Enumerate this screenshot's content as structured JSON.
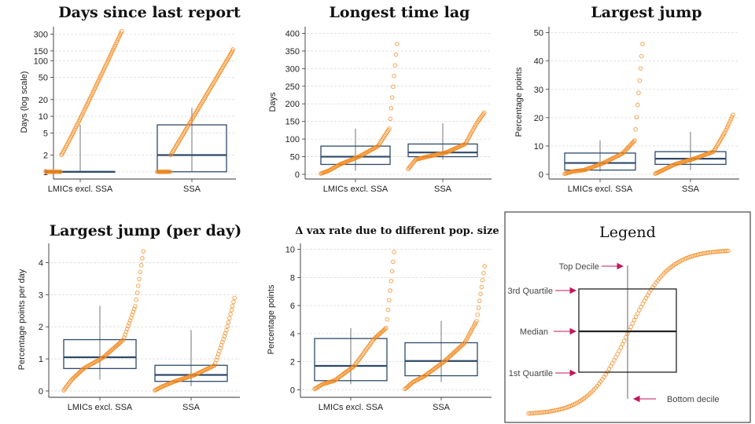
{
  "colors": {
    "box": "#2e4a6b",
    "point": "#f28a1f",
    "whisker": "#a9a9a9",
    "grid": "#dcdcdc",
    "arrow": "#c2185b"
  },
  "chart_data": [
    {
      "id": "days",
      "type": "box_strip",
      "title": "Days since last report",
      "ylabel": "Days (log scale)",
      "scale": "log",
      "ylim": [
        0.9,
        360
      ],
      "yticks": [
        1,
        2,
        5,
        10,
        20,
        50,
        100,
        150,
        300
      ],
      "categories": [
        "LMICs excl. SSA",
        "SSA"
      ],
      "boxes": [
        {
          "low": 1,
          "q1": 1,
          "median": 1,
          "q3": 1,
          "high": 7
        },
        {
          "low": 1,
          "q1": 1,
          "median": 2,
          "q3": 7,
          "high": 14
        }
      ],
      "points": [
        {
          "min": 1,
          "max": 340,
          "pattern": "days1"
        },
        {
          "min": 1,
          "max": 160,
          "pattern": "days2"
        }
      ]
    },
    {
      "id": "lag",
      "type": "box_strip",
      "title": "Longest time lag",
      "ylabel": "Days",
      "scale": "linear",
      "ylim": [
        0,
        410
      ],
      "yticks": [
        0,
        50,
        100,
        150,
        200,
        250,
        300,
        350,
        400
      ],
      "categories": [
        "LMICs excl. SSA",
        "SSA"
      ],
      "boxes": [
        {
          "low": 10,
          "q1": 28,
          "median": 50,
          "q3": 80,
          "high": 130
        },
        {
          "low": 42,
          "q1": 50,
          "median": 62,
          "q3": 86,
          "high": 145
        }
      ],
      "points": [
        {
          "min": 2,
          "max": 370,
          "pattern": "skew"
        },
        {
          "min": 15,
          "max": 175,
          "pattern": "skewmild"
        }
      ]
    },
    {
      "id": "jump",
      "type": "box_strip",
      "title": "Largest jump",
      "ylabel": "Percentage points",
      "scale": "linear",
      "ylim": [
        0,
        51
      ],
      "yticks": [
        0,
        10,
        20,
        30,
        40,
        50
      ],
      "categories": [
        "LMICs excl. SSA",
        "SSA"
      ],
      "boxes": [
        {
          "low": 1,
          "q1": 1.5,
          "median": 4,
          "q3": 7.5,
          "high": 12
        },
        {
          "low": 1.5,
          "q1": 3.5,
          "median": 5.5,
          "q3": 8,
          "high": 15
        }
      ],
      "points": [
        {
          "min": 0.2,
          "max": 46,
          "pattern": "skew"
        },
        {
          "min": 0.2,
          "max": 21,
          "pattern": "skewmild"
        }
      ]
    },
    {
      "id": "jumpday",
      "type": "box_strip",
      "title": "Largest jump (per day)",
      "ylabel": "Percentage points per day",
      "scale": "linear",
      "ylim": [
        -0.05,
        4.5
      ],
      "yticks": [
        0,
        1,
        2,
        3,
        4
      ],
      "categories": [
        "LMICs excl. SSA",
        "SSA"
      ],
      "boxes": [
        {
          "low": 0.35,
          "q1": 0.7,
          "median": 1.05,
          "q3": 1.6,
          "high": 2.65
        },
        {
          "low": 0.15,
          "q1": 0.3,
          "median": 0.5,
          "q3": 0.8,
          "high": 1.9
        }
      ],
      "points": [
        {
          "min": 0.02,
          "max": 4.35,
          "pattern": "skew"
        },
        {
          "min": 0.02,
          "max": 2.9,
          "pattern": "skew"
        }
      ]
    },
    {
      "id": "vax",
      "type": "box_strip",
      "title": "Δ vax rate due to different pop. size",
      "ylabel": "Percentage points",
      "scale": "linear",
      "ylim": [
        -0.2,
        10.2
      ],
      "yticks": [
        0,
        2,
        4,
        6,
        8,
        10
      ],
      "categories": [
        "LMICs excl. SSA",
        "SSA"
      ],
      "boxes": [
        {
          "low": 0.4,
          "q1": 0.65,
          "median": 1.7,
          "q3": 3.65,
          "high": 4.4
        },
        {
          "low": 0.55,
          "q1": 1.0,
          "median": 2.05,
          "q3": 3.35,
          "high": 4.9
        }
      ],
      "points": [
        {
          "min": 0.05,
          "max": 9.8,
          "pattern": "skew"
        },
        {
          "min": 0.05,
          "max": 8.8,
          "pattern": "skew"
        }
      ]
    }
  ],
  "legend": {
    "title": "Legend",
    "labels": [
      "Top Decile",
      "3rd Quartile",
      "Median",
      "1st Quartile",
      "Bottom decile"
    ]
  }
}
